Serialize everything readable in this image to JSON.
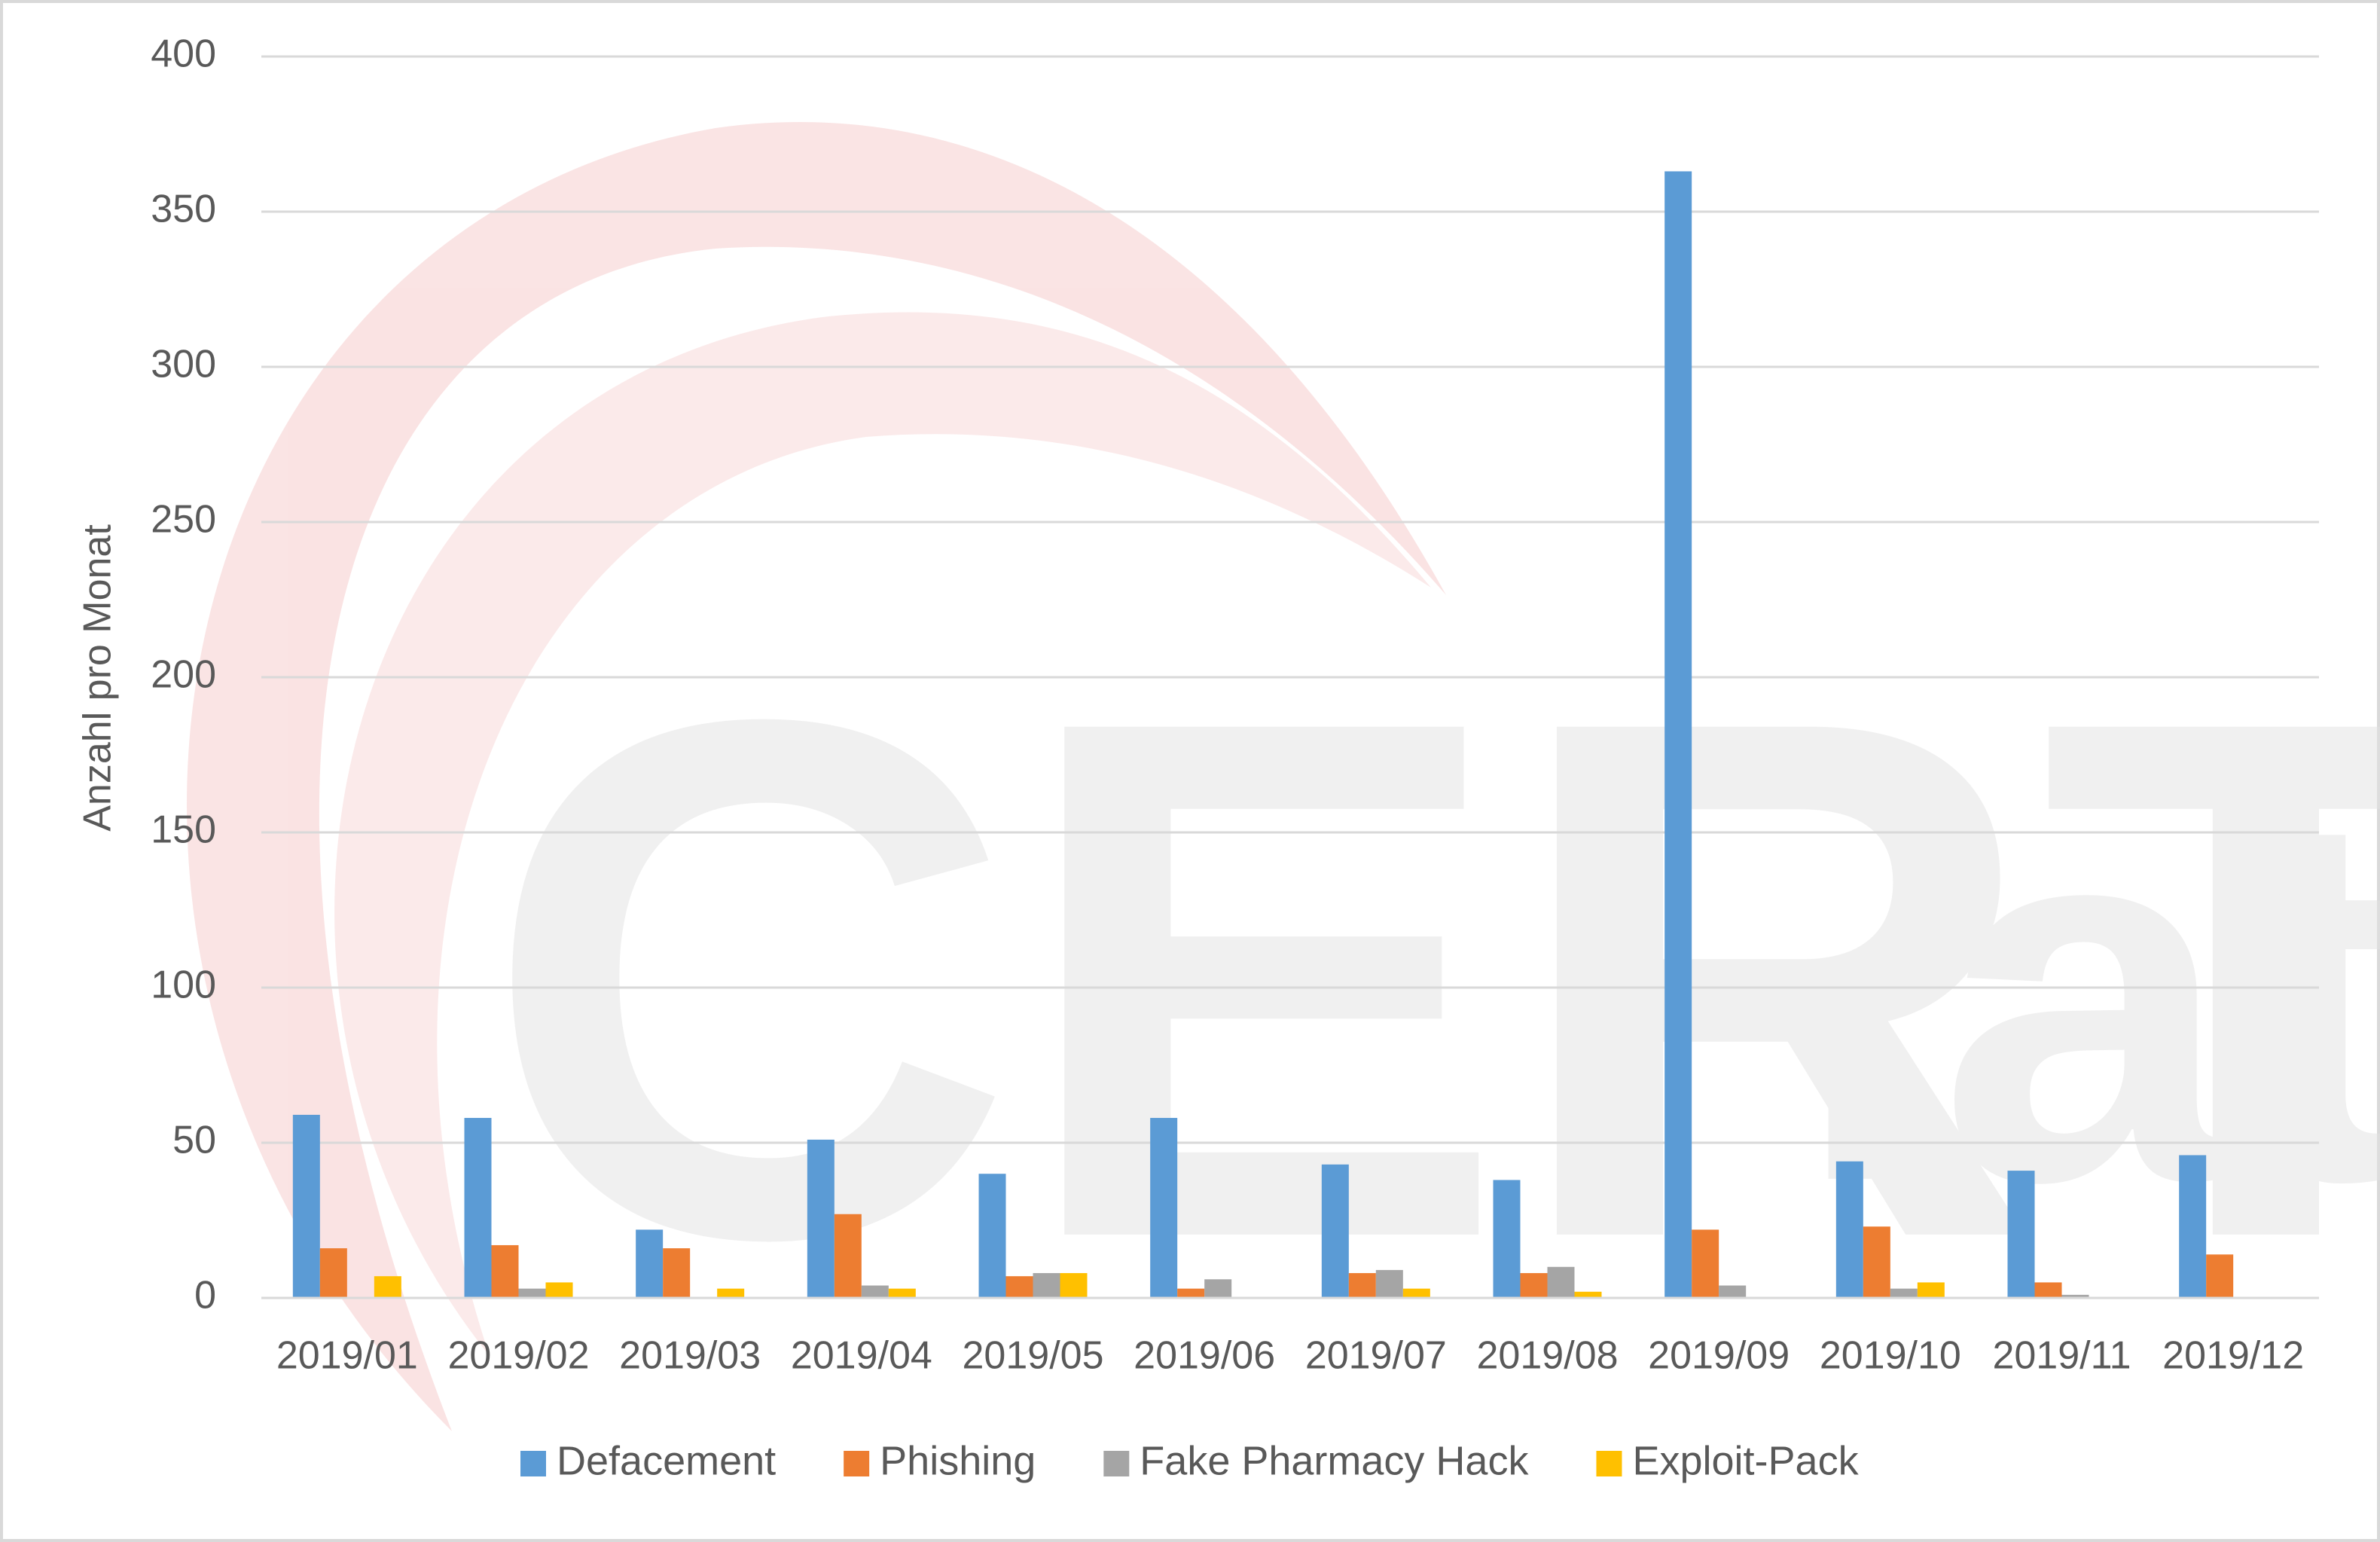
{
  "chart_data": {
    "type": "bar",
    "y_label": "Anzahl pro Monat",
    "categories": [
      "2019/01",
      "2019/02",
      "2019/03",
      "2019/04",
      "2019/05",
      "2019/06",
      "2019/07",
      "2019/08",
      "2019/09",
      "2019/10",
      "2019/11",
      "2019/12"
    ],
    "series": [
      {
        "name": "Defacement",
        "color": "#5b9bd5",
        "values": [
          59,
          58,
          22,
          51,
          40,
          58,
          43,
          38,
          363,
          44,
          41,
          46
        ]
      },
      {
        "name": "Phishing",
        "color": "#ed7d31",
        "values": [
          16,
          17,
          16,
          27,
          7,
          3,
          8,
          8,
          22,
          23,
          5,
          14
        ]
      },
      {
        "name": "Fake Pharmacy Hack",
        "color": "#a5a5a5",
        "values": [
          0,
          3,
          0,
          4,
          8,
          6,
          9,
          10,
          4,
          3,
          1,
          0
        ]
      },
      {
        "name": "Exploit-Pack",
        "color": "#ffc000",
        "values": [
          7,
          5,
          3,
          3,
          8,
          0,
          3,
          2,
          0,
          5,
          0,
          0
        ]
      }
    ],
    "ylim": [
      0,
      400
    ],
    "yticks": [
      0,
      50,
      100,
      150,
      200,
      250,
      300,
      350,
      400
    ],
    "grid": true,
    "legend": "bottom"
  }
}
